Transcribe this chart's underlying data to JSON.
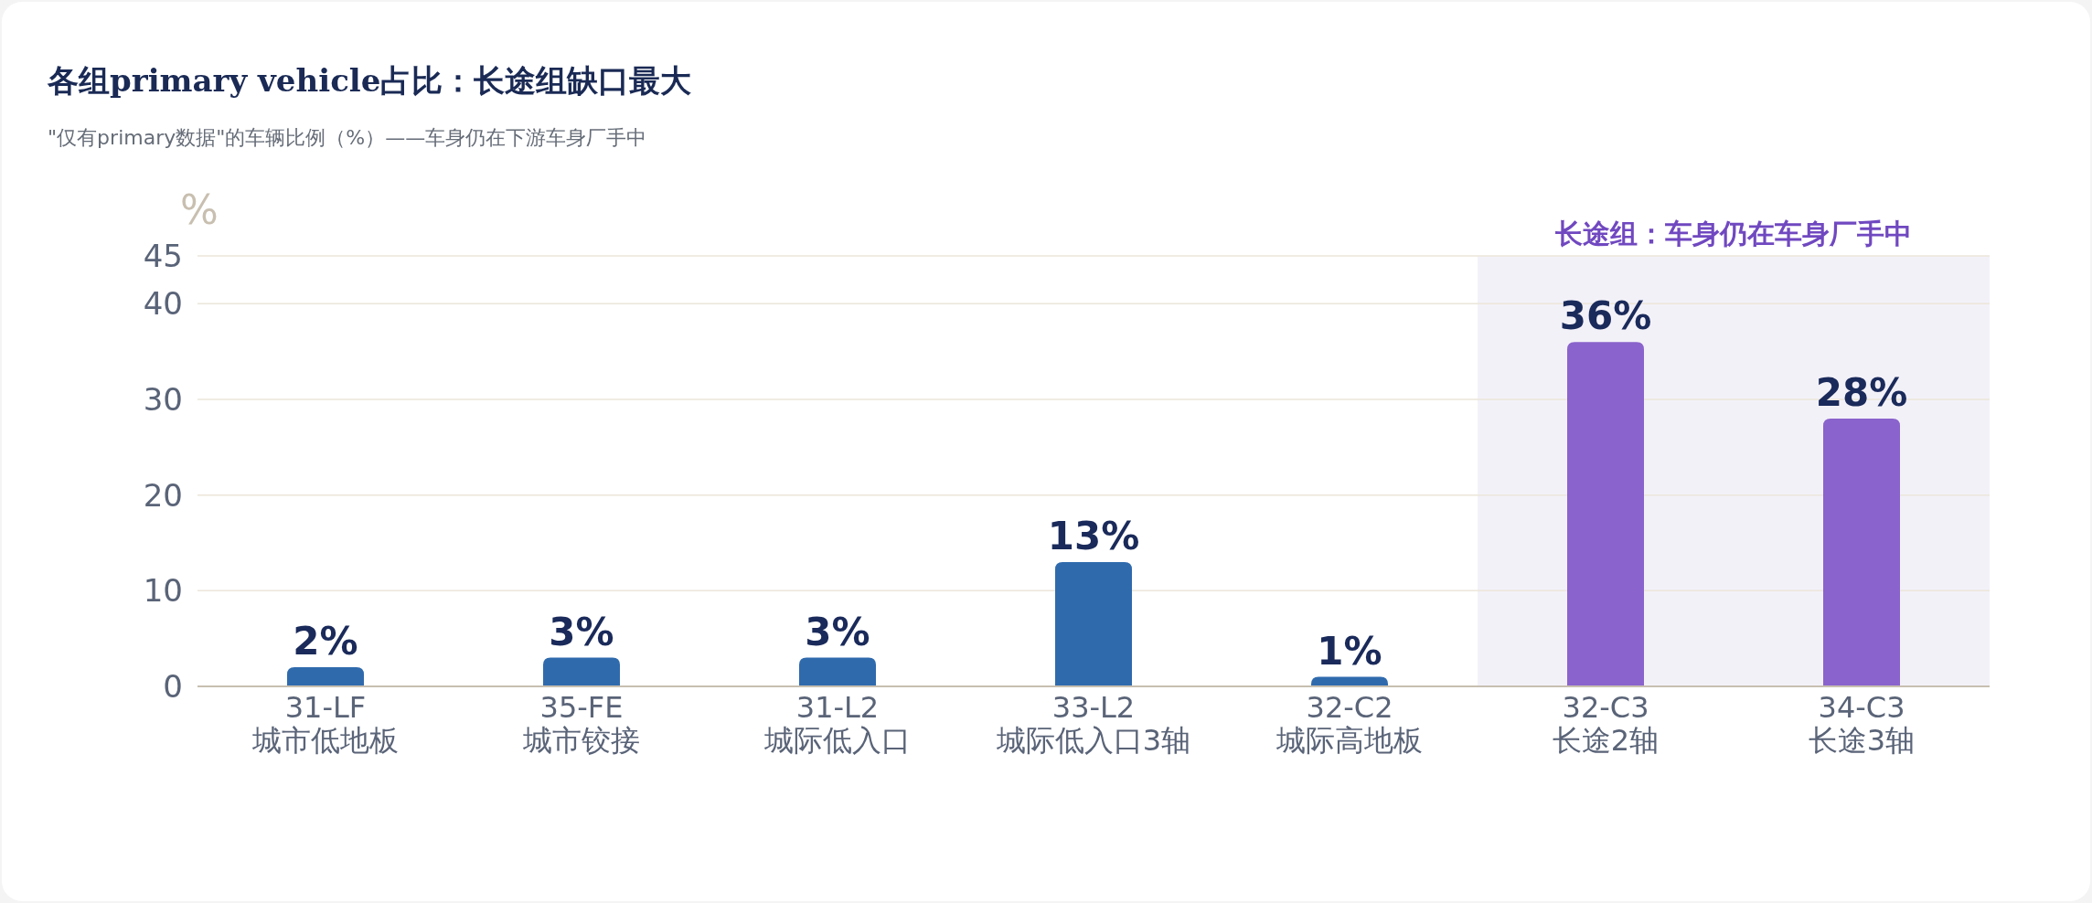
{
  "chart_data": {
    "type": "bar",
    "title": "各组primary vehicle占比：长途组缺口最大",
    "subtitle": "\"仅有primary数据\"的车辆比例（%）——车身仍在下游车身厂手中",
    "ylabel": "%",
    "categories": [
      "31-LF\n城市低地板",
      "35-FE\n城市铰接",
      "31-L2\n城际低入口",
      "33-L2\n城际低入口3轴",
      "32-C2\n城际高地板",
      "32-C3\n长途2轴",
      "34-C3\n长途3轴"
    ],
    "values": [
      2,
      3,
      3,
      13,
      1,
      36,
      28
    ],
    "colors": [
      "#2f6aad",
      "#2f6aad",
      "#2f6aad",
      "#2f6aad",
      "#2f6aad",
      "#8a63cc",
      "#8a63cc"
    ],
    "value_labels": [
      "2%",
      "3%",
      "3%",
      "13%",
      "1%",
      "36%",
      "28%"
    ],
    "ylim": [
      0,
      45
    ],
    "yticks": [
      0,
      10,
      20,
      30,
      40,
      45
    ],
    "grid": "y",
    "bands": [
      {
        "axis": "x",
        "from": "32-C3\n长途2轴",
        "to": "34-C3\n长途3轴",
        "label": "长途组：车身仍在车身厂手中",
        "color": "#f3f1f8"
      }
    ]
  }
}
